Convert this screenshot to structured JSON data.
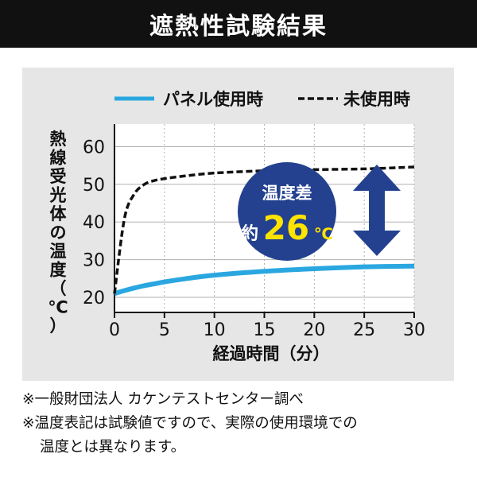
{
  "title": "遮熱性試験結果",
  "colors": {
    "panel_series": "#2aa7e0",
    "unused_series": "#111111",
    "badge_fill": "#23418f",
    "badge_text": "#ffffff",
    "badge_highlight": "#ffe400",
    "arrow": "#23418f"
  },
  "chart_data": {
    "type": "line",
    "x": [
      0,
      1,
      2,
      3,
      4,
      5,
      7,
      10,
      15,
      20,
      25,
      30
    ],
    "series": [
      {
        "name": "パネル使用時",
        "style": "solid",
        "values": [
          21,
          21.8,
          22.5,
          23.1,
          23.6,
          24.1,
          24.9,
          25.9,
          26.9,
          27.6,
          28.1,
          28.3
        ]
      },
      {
        "name": "未使用時",
        "style": "dashed",
        "values": [
          21,
          41,
          47.5,
          50,
          51,
          51.5,
          52.2,
          53,
          53.6,
          53.9,
          54.1,
          54.6
        ]
      }
    ],
    "xlabel": "経過時間（分）",
    "ylabel": "熱線受光体の温度（℃）",
    "xlim": [
      0,
      30
    ],
    "ylim": [
      16,
      66
    ],
    "xticks": [
      "0",
      "5",
      "10",
      "15",
      "20",
      "25",
      "30"
    ],
    "yticks": [
      "20",
      "30",
      "40",
      "50",
      "60"
    ],
    "grid": "vertical dotted + horizontal solid",
    "legend": "top",
    "annotation": {
      "line1": "温度差",
      "prefix": "約",
      "value": "26",
      "unit": "℃"
    }
  },
  "notes": [
    "※一般財団法人 カケンテストセンター調べ",
    "※温度表記は試験値ですので、実際の使用環境での",
    "温度とは異なります。"
  ]
}
